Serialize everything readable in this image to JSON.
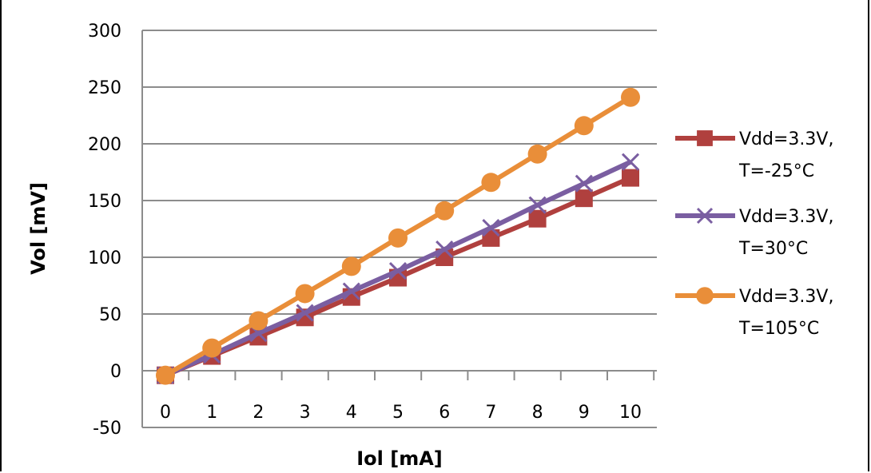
{
  "chart_data": {
    "type": "line",
    "xlabel": "Iol [mA]",
    "ylabel": "Vol [mV]",
    "x": [
      0,
      1,
      2,
      3,
      4,
      5,
      6,
      7,
      8,
      9,
      10
    ],
    "ylim": [
      -50,
      300
    ],
    "yticks": [
      -50,
      0,
      50,
      100,
      150,
      200,
      250,
      300
    ],
    "grid": true,
    "legend_position": "right",
    "series": [
      {
        "name_lines": [
          "Vdd=3.3V,",
          "T=-25°C"
        ],
        "marker": "square",
        "color": "#B0403E",
        "values": [
          -4,
          13,
          30,
          47,
          65,
          82,
          100,
          117,
          134,
          152,
          170
        ]
      },
      {
        "name_lines": [
          "Vdd=3.3V,",
          "T=30°C"
        ],
        "marker": "x",
        "color": "#7A5EA1",
        "values": [
          -4,
          14,
          33,
          51,
          70,
          88,
          107,
          126,
          146,
          165,
          184
        ]
      },
      {
        "name_lines": [
          "Vdd=3.3V,",
          "T=105°C"
        ],
        "marker": "circle",
        "color": "#E98E39",
        "values": [
          -4,
          20,
          44,
          68,
          92,
          117,
          141,
          166,
          191,
          216,
          241
        ]
      }
    ]
  }
}
